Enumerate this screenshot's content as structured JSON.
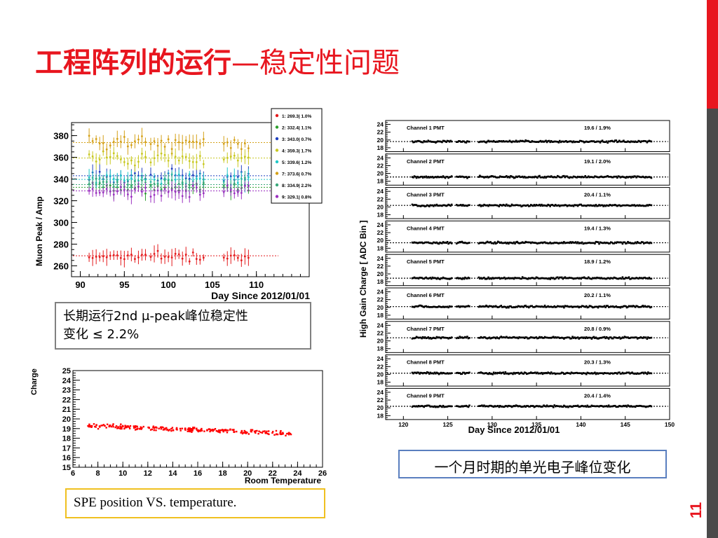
{
  "slide": {
    "title_bold": "工程阵列的运行",
    "title_rest": "—稳定性问题",
    "page_number": "11",
    "accent_color": "#e8161f"
  },
  "chart1": {
    "type": "scatter",
    "ylabel": "Muon Peak / Amp",
    "xlabel": "Day Since 2012/01/01",
    "xlim": [
      89,
      116
    ],
    "ylim": [
      250,
      392
    ],
    "x_ticks": [
      90,
      95,
      100,
      105,
      110
    ],
    "y_ticks": [
      260,
      280,
      300,
      320,
      340,
      360,
      380
    ],
    "day_ranges": [
      [
        91,
        97.5
      ],
      [
        98,
        103.3
      ],
      [
        103.6,
        104.2
      ],
      [
        106.3,
        109.4
      ]
    ],
    "legend": [
      {
        "label": "1: 269.3| 1.0%",
        "color": "#e41a1c",
        "value": 269.3
      },
      {
        "label": "2: 332.4| 1.1%",
        "color": "#2ca02c",
        "value": 332.4
      },
      {
        "label": "3: 343.0| 0.7%",
        "color": "#1f3fbf",
        "value": 343.0
      },
      {
        "label": "4: 359.3| 1.7%",
        "color": "#c8c820",
        "value": 359.3
      },
      {
        "label": "5: 339.6| 1.2%",
        "color": "#20c8c8",
        "value": 339.6
      },
      {
        "label": "7: 373.6| 0.7%",
        "color": "#d4a017",
        "value": 373.6
      },
      {
        "label": "8: 334.9| 2.2%",
        "color": "#3aa87a",
        "value": 334.9
      },
      {
        "label": "9: 329.1| 0.8%",
        "color": "#9b30c0",
        "value": 329.1
      }
    ]
  },
  "note1_line1": "长期运行2nd μ-peak峰位稳定性",
  "note1_line2": "变化 ≤ 2.2%",
  "chart2": {
    "type": "scatter",
    "ylabel": "Charge",
    "xlabel": "Room Temperature",
    "xlim": [
      6,
      26
    ],
    "ylim": [
      15,
      25
    ],
    "x_ticks": [
      6,
      8,
      10,
      12,
      14,
      16,
      18,
      20,
      22,
      24,
      26
    ],
    "y_ticks": [
      15,
      16,
      17,
      18,
      19,
      20,
      21,
      22,
      23,
      24,
      25
    ],
    "trend": {
      "x_start": 7.2,
      "y_start": 19.3,
      "x_end": 23.5,
      "y_end": 18.5
    },
    "point_color": "#ff0000"
  },
  "note2": "SPE position VS. temperature.",
  "chart3": {
    "type": "line",
    "ylabel": "High Gain Charge [ ADC Bin ]",
    "xlabel": "Day Since 2012/01/01",
    "xlim": [
      118,
      150
    ],
    "ylim": [
      17,
      25
    ],
    "x_ticks": [
      120,
      125,
      130,
      135,
      140,
      145,
      150
    ],
    "y_ticks": [
      18,
      20,
      22,
      24
    ],
    "day_ranges": [
      [
        121,
        125.5
      ],
      [
        126,
        127.5
      ],
      [
        128.5,
        148
      ]
    ],
    "panels": [
      {
        "label": "Channel 1 PMT",
        "stat": "19.6 /  1.9%",
        "mean": 19.6
      },
      {
        "label": "Channel 2 PMT",
        "stat": "19.1 /  2.0%",
        "mean": 19.1
      },
      {
        "label": "Channel 3 PMT",
        "stat": "20.4 /  1.1%",
        "mean": 20.4
      },
      {
        "label": "Channel 4 PMT",
        "stat": "19.4 /  1.3%",
        "mean": 19.4
      },
      {
        "label": "Channel 5 PMT",
        "stat": "18.9 /  1.2%",
        "mean": 18.9
      },
      {
        "label": "Channel 6 PMT",
        "stat": "20.2 /  1.1%",
        "mean": 20.2
      },
      {
        "label": "Channel 7 PMT",
        "stat": "20.8 /  0.9%",
        "mean": 20.8
      },
      {
        "label": "Channel 8 PMT",
        "stat": "20.3 /  1.3%",
        "mean": 20.3
      },
      {
        "label": "Channel 9 PMT",
        "stat": "20.4 /  1.4%",
        "mean": 20.4
      }
    ]
  },
  "note3": "一个月时期的单光电子峰位变化"
}
